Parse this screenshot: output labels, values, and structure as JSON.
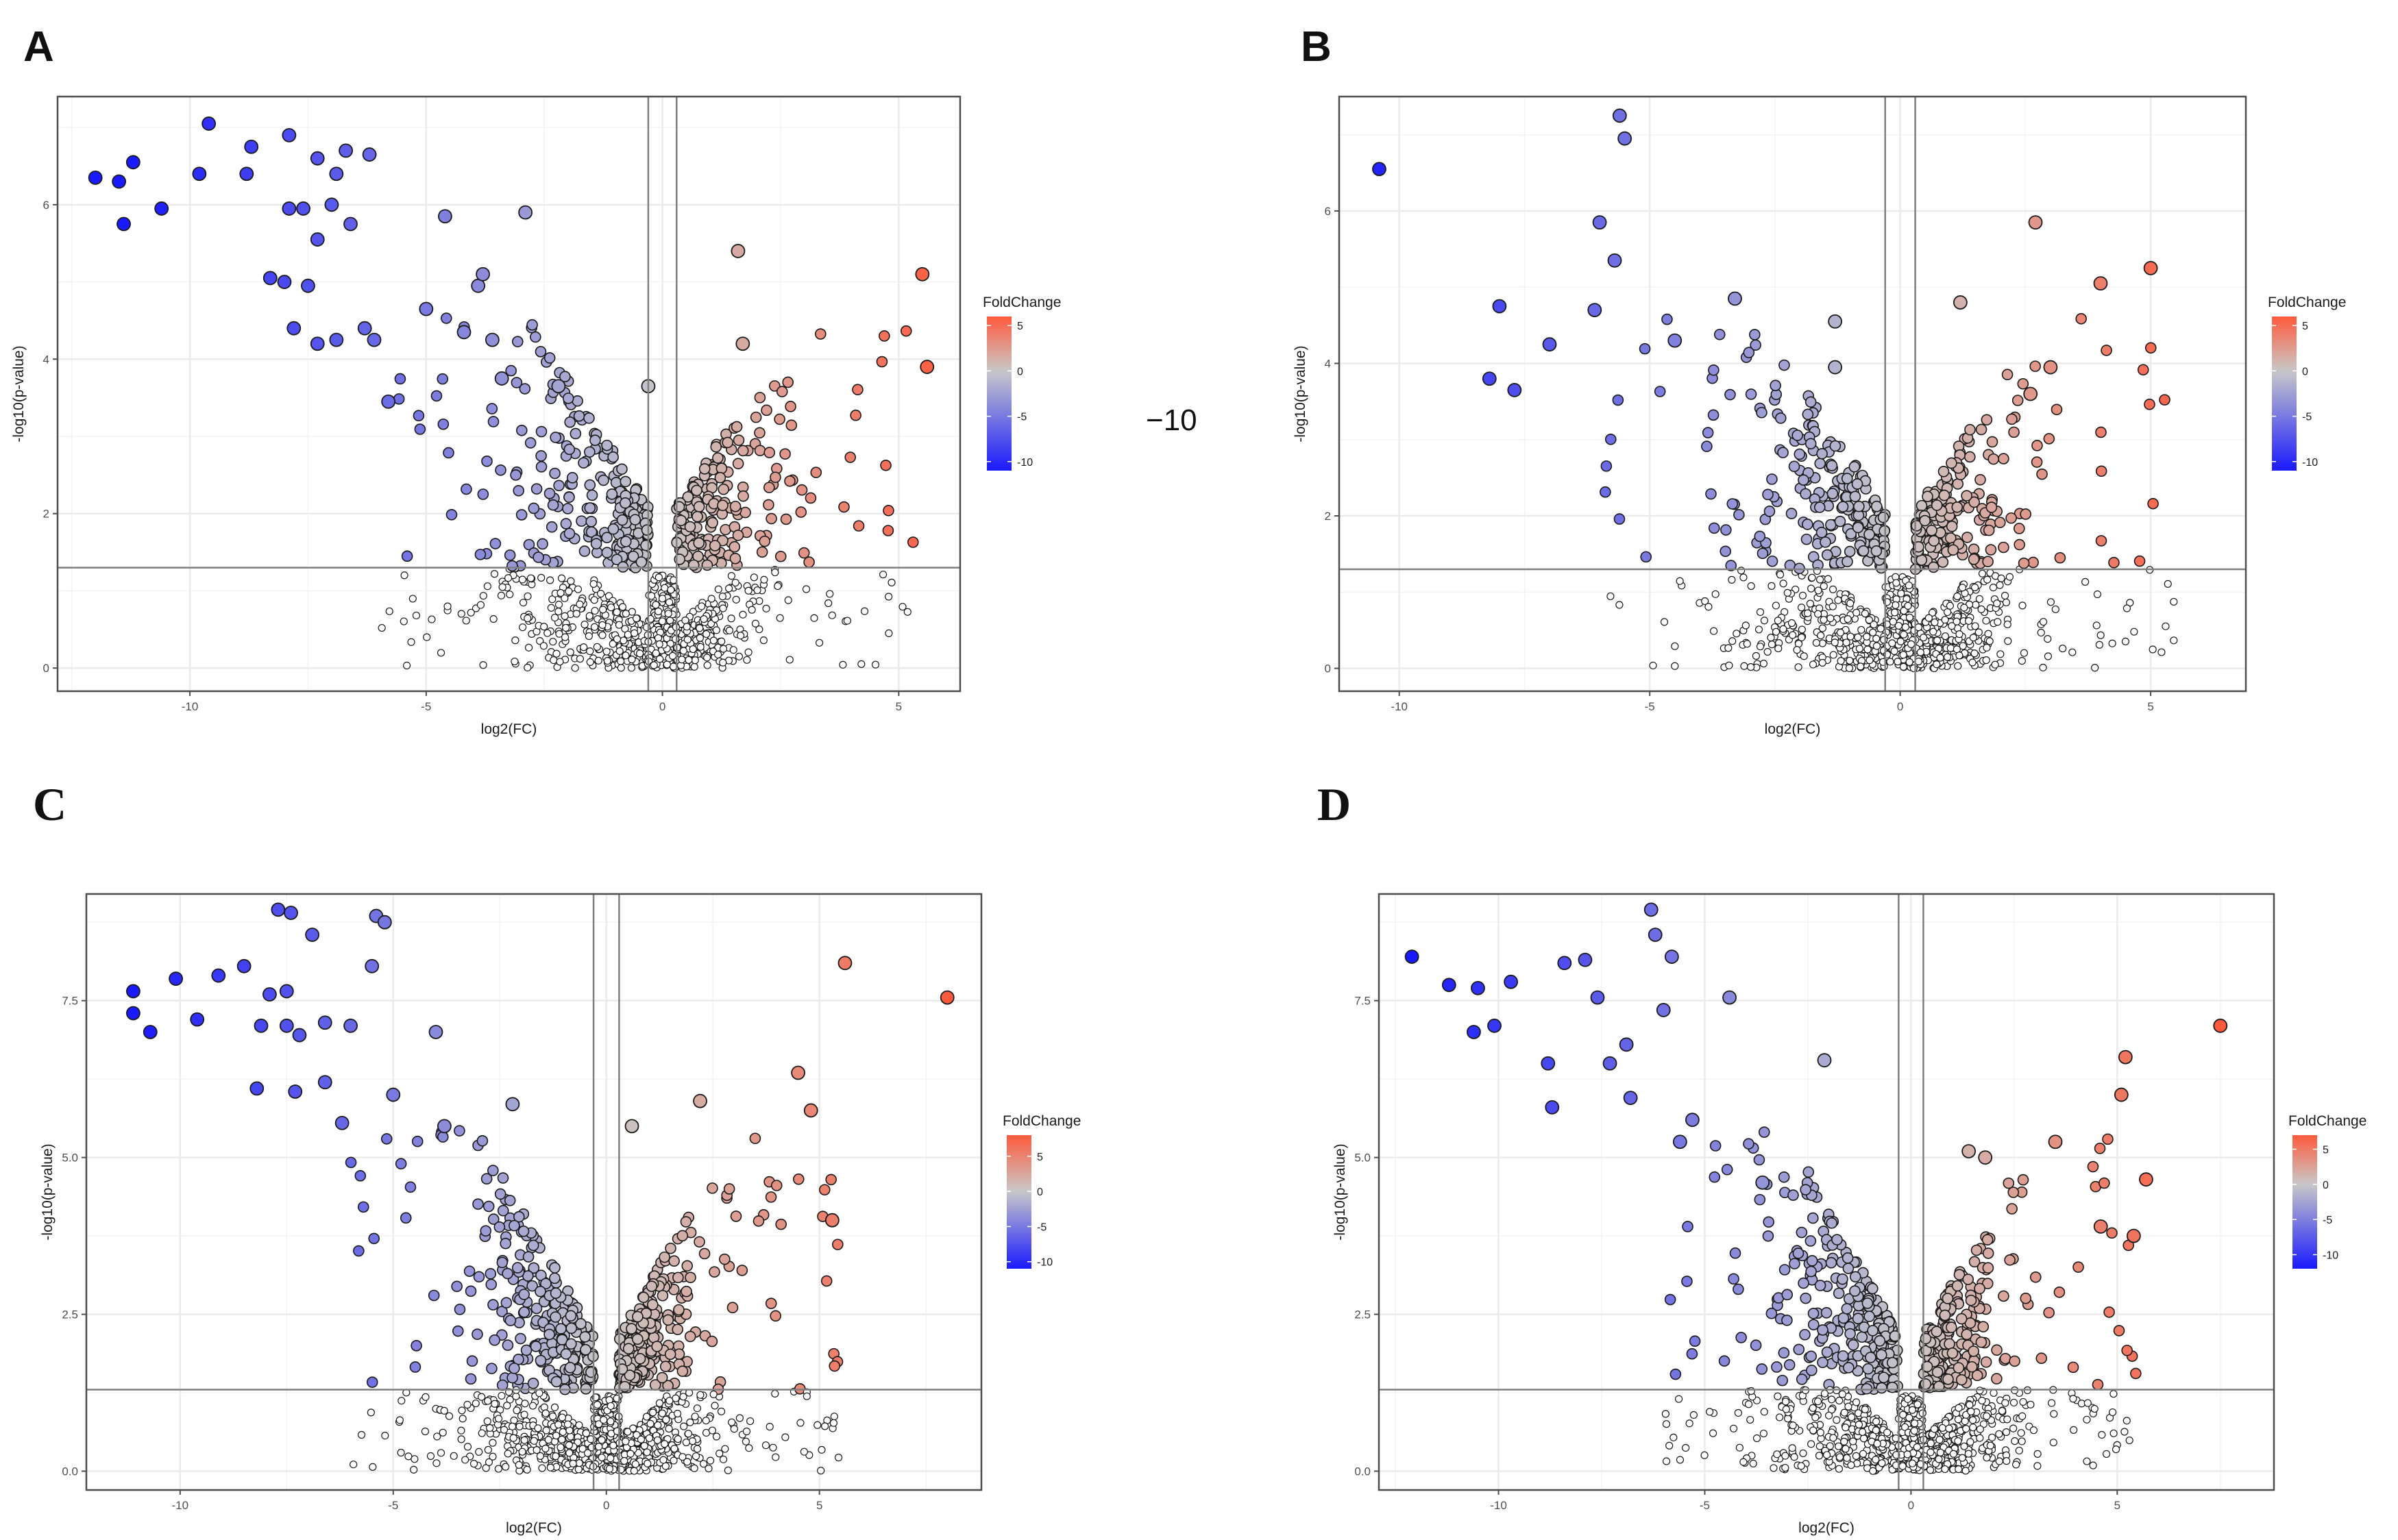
{
  "stray_text": "−10",
  "colors": {
    "low": "#1a1aff",
    "mid": "#c8c8c8",
    "high": "#ff5a3c",
    "grid": "#ebebeb",
    "frame": "#4d4d4d",
    "threshold": "#7f7f7f"
  },
  "chart_data": [
    {
      "type": "scatter",
      "panel": "A",
      "xlabel": "log2(FC)",
      "ylabel": "-log10(p-value)",
      "xlim": [
        -12.8,
        6.3
      ],
      "ylim": [
        -0.3,
        7.4
      ],
      "xticks": [
        -10,
        -5,
        0,
        5
      ],
      "yticks": [
        0,
        2,
        4,
        6
      ],
      "xtick_labels": [
        "-10",
        "-5",
        "0",
        "5"
      ],
      "ytick_labels": [
        "0",
        "2",
        "4",
        "6"
      ],
      "vlines": [
        -0.3,
        0.3
      ],
      "hline": 1.3,
      "legend": {
        "title": "FoldChange",
        "position": "right",
        "range": [
          -11,
          6
        ],
        "ticks": [
          5,
          0,
          -5,
          -10
        ],
        "tick_labels": [
          "5",
          "0",
          "-5",
          "-10"
        ]
      },
      "labeled_points": [
        [
          -12,
          6.35
        ],
        [
          -11.5,
          6.3
        ],
        [
          -11.2,
          6.55
        ],
        [
          -11.4,
          5.75
        ],
        [
          -10.6,
          5.95
        ],
        [
          -9.8,
          6.4
        ],
        [
          -9.6,
          7.05
        ],
        [
          -8.7,
          6.75
        ],
        [
          -8.8,
          6.4
        ],
        [
          -8.3,
          5.05
        ],
        [
          -8.0,
          5.0
        ],
        [
          -7.9,
          5.95
        ],
        [
          -7.9,
          6.9
        ],
        [
          -7.6,
          5.95
        ],
        [
          -7.5,
          4.95
        ],
        [
          -7.3,
          5.55
        ],
        [
          -7.3,
          6.6
        ],
        [
          -7.0,
          6.0
        ],
        [
          -6.9,
          6.4
        ],
        [
          -6.7,
          6.7
        ],
        [
          -6.6,
          5.75
        ],
        [
          -6.2,
          6.65
        ],
        [
          -7.8,
          4.4
        ],
        [
          -7.3,
          4.2
        ],
        [
          -6.9,
          4.25
        ],
        [
          -6.3,
          4.4
        ],
        [
          -6.1,
          4.25
        ],
        [
          -5.8,
          3.45
        ],
        [
          -5.0,
          4.65
        ],
        [
          -4.6,
          5.85
        ],
        [
          -4.2,
          4.35
        ],
        [
          -3.9,
          4.95
        ],
        [
          -3.8,
          5.1
        ],
        [
          -3.6,
          4.25
        ],
        [
          -3.4,
          3.75
        ],
        [
          -2.9,
          5.9
        ],
        [
          -2.2,
          3.65
        ],
        [
          -0.3,
          3.65
        ],
        [
          1.6,
          5.4
        ],
        [
          1.7,
          4.2
        ],
        [
          5.5,
          5.1
        ],
        [
          5.6,
          3.9
        ]
      ],
      "n_background_points": 1050
    },
    {
      "type": "scatter",
      "panel": "B",
      "xlabel": "log2(FC)",
      "ylabel": "-log10(p-value)",
      "xlim": [
        -11.2,
        6.9
      ],
      "ylim": [
        -0.3,
        7.5
      ],
      "xticks": [
        -10,
        -5,
        0,
        5
      ],
      "yticks": [
        0,
        2,
        4,
        6
      ],
      "xtick_labels": [
        "-10",
        "-5",
        "0",
        "5"
      ],
      "ytick_labels": [
        "0",
        "2",
        "4",
        "6"
      ],
      "vlines": [
        -0.3,
        0.3
      ],
      "hline": 1.3,
      "legend": {
        "title": "FoldChange",
        "position": "right",
        "range": [
          -11,
          6
        ],
        "ticks": [
          5,
          0,
          -5,
          -10
        ],
        "tick_labels": [
          "5",
          "0",
          "-5",
          "-10"
        ]
      },
      "labeled_points": [
        [
          -10.4,
          6.55
        ],
        [
          -5.6,
          7.25
        ],
        [
          -5.5,
          6.95
        ],
        [
          -6.0,
          5.85
        ],
        [
          -5.7,
          5.35
        ],
        [
          -6.1,
          4.7
        ],
        [
          -8.0,
          4.75
        ],
        [
          -7.0,
          4.25
        ],
        [
          -8.2,
          3.8
        ],
        [
          -7.7,
          3.65
        ],
        [
          -4.5,
          4.3
        ],
        [
          -3.3,
          4.85
        ],
        [
          -1.3,
          4.55
        ],
        [
          -1.3,
          3.95
        ],
        [
          1.2,
          4.8
        ],
        [
          2.7,
          5.85
        ],
        [
          4.0,
          5.05
        ],
        [
          5.0,
          5.25
        ],
        [
          3.0,
          3.95
        ],
        [
          2.6,
          3.6
        ]
      ],
      "n_background_points": 1100
    },
    {
      "type": "scatter",
      "panel": "C",
      "xlabel": "log2(FC)",
      "ylabel": "-log10(p-value)",
      "xlim": [
        -12.2,
        8.8
      ],
      "ylim": [
        -0.3,
        9.2
      ],
      "xticks": [
        -10,
        -5,
        0,
        5
      ],
      "yticks": [
        0,
        2.5,
        5,
        7.5
      ],
      "xtick_labels": [
        "-10",
        "-5",
        "0",
        "5"
      ],
      "ytick_labels": [
        "0.0",
        "2.5",
        "5.0",
        "7.5"
      ],
      "vlines": [
        -0.3,
        0.3
      ],
      "hline": 1.3,
      "legend": {
        "title": "FoldChange",
        "position": "right",
        "range": [
          -11,
          8
        ],
        "ticks": [
          5,
          0,
          -5,
          -10
        ],
        "tick_labels": [
          "5",
          "0",
          "-5",
          "-10"
        ]
      },
      "labeled_points": [
        [
          -11.1,
          7.65
        ],
        [
          -11.1,
          7.3
        ],
        [
          -10.7,
          7.0
        ],
        [
          -10.1,
          7.85
        ],
        [
          -9.6,
          7.2
        ],
        [
          -9.1,
          7.9
        ],
        [
          -8.5,
          8.05
        ],
        [
          -8.1,
          7.1
        ],
        [
          -7.9,
          7.6
        ],
        [
          -7.7,
          8.95
        ],
        [
          -7.4,
          8.9
        ],
        [
          -7.5,
          7.65
        ],
        [
          -7.5,
          7.1
        ],
        [
          -7.2,
          6.95
        ],
        [
          -6.9,
          8.55
        ],
        [
          -6.6,
          7.15
        ],
        [
          -6.0,
          7.1
        ],
        [
          -5.4,
          8.85
        ],
        [
          -5.2,
          8.75
        ],
        [
          -5.5,
          8.05
        ],
        [
          -8.2,
          6.1
        ],
        [
          -7.3,
          6.05
        ],
        [
          -6.6,
          6.2
        ],
        [
          -6.2,
          5.55
        ],
        [
          -5.0,
          6.0
        ],
        [
          -4.0,
          7.0
        ],
        [
          -3.8,
          5.5
        ],
        [
          -2.2,
          5.85
        ],
        [
          0.6,
          5.5
        ],
        [
          2.2,
          5.9
        ],
        [
          4.5,
          6.35
        ],
        [
          4.8,
          5.75
        ],
        [
          5.6,
          8.1
        ],
        [
          8.0,
          7.55
        ],
        [
          5.3,
          4.0
        ]
      ],
      "n_background_points": 1300
    },
    {
      "type": "scatter",
      "panel": "D",
      "xlabel": "log2(FC)",
      "ylabel": "-log10(p-value)",
      "xlim": [
        -12.9,
        8.8
      ],
      "ylim": [
        -0.3,
        9.2
      ],
      "xticks": [
        -10,
        -5,
        0,
        5
      ],
      "yticks": [
        0,
        2.5,
        5,
        7.5
      ],
      "xtick_labels": [
        "-10",
        "-5",
        "0",
        "5"
      ],
      "ytick_labels": [
        "0.0",
        "2.5",
        "5.0",
        "7.5"
      ],
      "vlines": [
        -0.3,
        0.3
      ],
      "hline": 1.3,
      "legend": {
        "title": "FoldChange",
        "position": "right",
        "range": [
          -12,
          7
        ],
        "ticks": [
          5,
          0,
          -5,
          -10
        ],
        "tick_labels": [
          "5",
          "0",
          "-5",
          "-10"
        ]
      },
      "labeled_points": [
        [
          -12.1,
          8.2
        ],
        [
          -11.2,
          7.75
        ],
        [
          -10.5,
          7.7
        ],
        [
          -10.6,
          7.0
        ],
        [
          -10.1,
          7.1
        ],
        [
          -9.7,
          7.8
        ],
        [
          -8.8,
          6.5
        ],
        [
          -8.7,
          5.8
        ],
        [
          -8.4,
          8.1
        ],
        [
          -7.9,
          8.15
        ],
        [
          -7.6,
          7.55
        ],
        [
          -7.3,
          6.5
        ],
        [
          -6.9,
          6.8
        ],
        [
          -6.8,
          5.95
        ],
        [
          -6.3,
          8.95
        ],
        [
          -6.2,
          8.55
        ],
        [
          -5.8,
          8.2
        ],
        [
          -6.0,
          7.35
        ],
        [
          -5.6,
          5.25
        ],
        [
          -5.3,
          5.6
        ],
        [
          -4.4,
          7.55
        ],
        [
          -3.6,
          4.6
        ],
        [
          -2.1,
          6.55
        ],
        [
          1.4,
          5.1
        ],
        [
          1.8,
          5.0
        ],
        [
          3.5,
          5.25
        ],
        [
          5.1,
          6.0
        ],
        [
          5.2,
          6.6
        ],
        [
          7.5,
          7.1
        ],
        [
          5.7,
          4.65
        ],
        [
          5.4,
          3.75
        ],
        [
          4.6,
          3.9
        ]
      ],
      "n_background_points": 1300
    }
  ]
}
